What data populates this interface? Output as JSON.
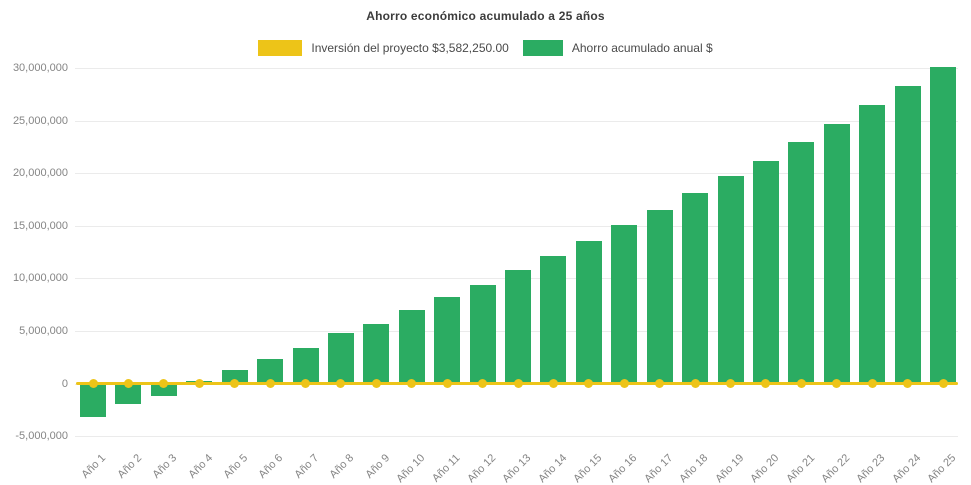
{
  "title": "Ahorro económico acumulado a 25 años",
  "legend": {
    "items": [
      {
        "label": "Inversión del proyecto $3,582,250.00",
        "color": "#EDC418",
        "swatch": "line-series-swatch"
      },
      {
        "label": "Ahorro acumulado anual $",
        "color": "#2BAC62",
        "swatch": "bar-series-swatch"
      }
    ]
  },
  "colors": {
    "bar_green": "#2BAC62",
    "line_yellow": "#EDC418",
    "axis_label_gray": "#858585",
    "title_gray": "#3c3c3c",
    "background": "#ffffff"
  },
  "chart_data": {
    "type": "bar",
    "title": "Ahorro económico acumulado a 25 años",
    "xlabel": "",
    "ylabel": "",
    "grid": true,
    "legend_position": "top",
    "categories": [
      "Año 1",
      "Año 2",
      "Año 3",
      "Año 4",
      "Año 5",
      "Año 6",
      "Año 7",
      "Año 8",
      "Año 9",
      "Año 10",
      "Año 11",
      "Año 12",
      "Año 13",
      "Año 14",
      "Año 15",
      "Año 16",
      "Año 17",
      "Año 18",
      "Año 19",
      "Año 20",
      "Año 21",
      "Año 22",
      "Año 23",
      "Año 24",
      "Año 25"
    ],
    "series": [
      {
        "name": "Ahorro acumulado anual $",
        "type": "bar",
        "color": "#2BAC62",
        "values": [
          -3000000,
          -1800000,
          -1050000,
          250000,
          1300000,
          2350000,
          3400000,
          4800000,
          5650000,
          6950000,
          8250000,
          9400000,
          10800000,
          12150000,
          13600000,
          15100000,
          16500000,
          18100000,
          19700000,
          21200000,
          23000000,
          24700000,
          26500000,
          28350000,
          30150000
        ]
      },
      {
        "name": "Inversión del proyecto $3,582,250.00",
        "type": "line",
        "color": "#EDC418",
        "amount_label": "$3,582,250.00",
        "plotted_value": 0,
        "values": [
          0,
          0,
          0,
          0,
          0,
          0,
          0,
          0,
          0,
          0,
          0,
          0,
          0,
          0,
          0,
          0,
          0,
          0,
          0,
          0,
          0,
          0,
          0,
          0,
          0
        ]
      }
    ],
    "y_tick_values": [
      30000000,
      25000000,
      20000000,
      15000000,
      10000000,
      5000000,
      0,
      -5000000
    ],
    "y_tick_labels": [
      "30,000,000",
      "25,000,000",
      "20,000,000",
      "15,000,000",
      "10,000,000",
      "5,000,000",
      "0",
      "-5,000,000"
    ],
    "ylim": [
      -5000000,
      30500000
    ]
  }
}
